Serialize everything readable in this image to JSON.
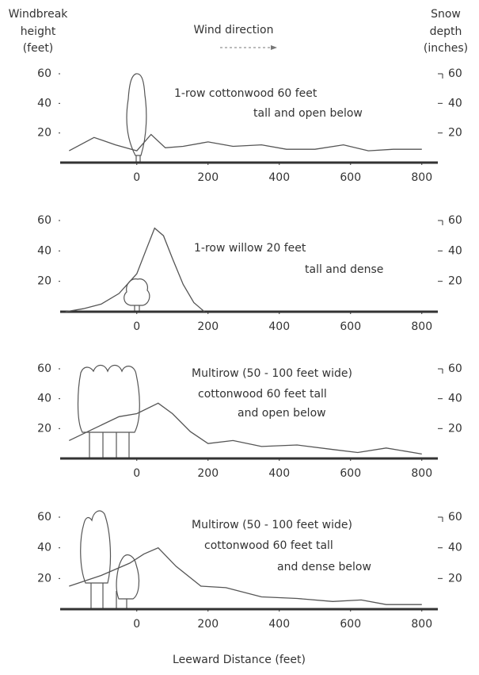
{
  "figure": {
    "y_axis_label": [
      "Windbreak",
      "height",
      "(feet)"
    ],
    "wind_label": "Wind direction",
    "y2_axis_label": [
      "Snow",
      "depth",
      "(inches)"
    ],
    "x_axis_label": "Leeward Distance (feet)"
  },
  "chart_data": [
    {
      "type": "line",
      "annotation": [
        "1-row cottonwood 60 feet",
        "tall and open below"
      ],
      "x": [
        -190,
        -120,
        -60,
        0,
        40,
        80,
        130,
        200,
        270,
        350,
        420,
        500,
        580,
        650,
        720,
        800
      ],
      "series": [
        {
          "axis": "y2",
          "color": "#555555",
          "values": [
            8,
            17,
            12,
            8,
            19,
            10,
            11,
            14,
            11,
            12,
            9,
            9,
            12,
            8,
            9,
            9
          ]
        }
      ],
      "xlim": [
        -215,
        845
      ],
      "xticks": [
        0,
        200,
        400,
        600,
        800
      ],
      "ylim": [
        0,
        60
      ],
      "yticks": [
        20,
        40,
        60
      ],
      "y2lim": [
        0,
        60
      ],
      "y2ticks": [
        20,
        40,
        60
      ]
    },
    {
      "type": "line",
      "annotation": [
        "1-row willow 20 feet",
        "tall and dense"
      ],
      "x": [
        -200,
        -150,
        -100,
        -50,
        0,
        25,
        50,
        75,
        100,
        130,
        160,
        190
      ],
      "series": [
        {
          "axis": "y2",
          "color": "#555555",
          "values": [
            0,
            2,
            5,
            12,
            25,
            40,
            55,
            50,
            35,
            18,
            6,
            0
          ]
        }
      ],
      "xlim": [
        -215,
        845
      ],
      "xticks": [
        0,
        200,
        400,
        600,
        800
      ],
      "ylim": [
        0,
        60
      ],
      "yticks": [
        20,
        40,
        60
      ],
      "y2lim": [
        0,
        60
      ],
      "y2ticks": [
        20,
        40,
        60
      ]
    },
    {
      "type": "line",
      "annotation": [
        "Multirow (50 - 100 feet wide)",
        "cottonwood 60 feet tall",
        "and open below"
      ],
      "x": [
        -190,
        -120,
        -50,
        0,
        60,
        100,
        150,
        200,
        270,
        350,
        450,
        550,
        620,
        700,
        800
      ],
      "series": [
        {
          "axis": "y2",
          "color": "#555555",
          "values": [
            12,
            20,
            28,
            30,
            37,
            30,
            18,
            10,
            12,
            8,
            9,
            6,
            4,
            7,
            3
          ]
        }
      ],
      "xlim": [
        -215,
        845
      ],
      "xticks": [
        0,
        200,
        400,
        600,
        800
      ],
      "ylim": [
        0,
        60
      ],
      "yticks": [
        20,
        40,
        60
      ],
      "y2lim": [
        0,
        60
      ],
      "y2ticks": [
        20,
        40,
        60
      ]
    },
    {
      "type": "line",
      "annotation": [
        "Multirow (50 - 100 feet wide)",
        "cottonwood 60 feet tall",
        "and dense below"
      ],
      "x": [
        -190,
        -100,
        -20,
        20,
        60,
        110,
        180,
        250,
        350,
        450,
        550,
        630,
        700,
        800
      ],
      "series": [
        {
          "axis": "y2",
          "color": "#555555",
          "values": [
            15,
            22,
            30,
            36,
            40,
            28,
            15,
            14,
            8,
            7,
            5,
            6,
            3,
            3
          ]
        }
      ],
      "xlim": [
        -215,
        845
      ],
      "xticks": [
        0,
        200,
        400,
        600,
        800
      ],
      "ylim": [
        0,
        60
      ],
      "yticks": [
        20,
        40,
        60
      ],
      "y2lim": [
        0,
        60
      ],
      "y2ticks": [
        20,
        40,
        60
      ]
    }
  ]
}
